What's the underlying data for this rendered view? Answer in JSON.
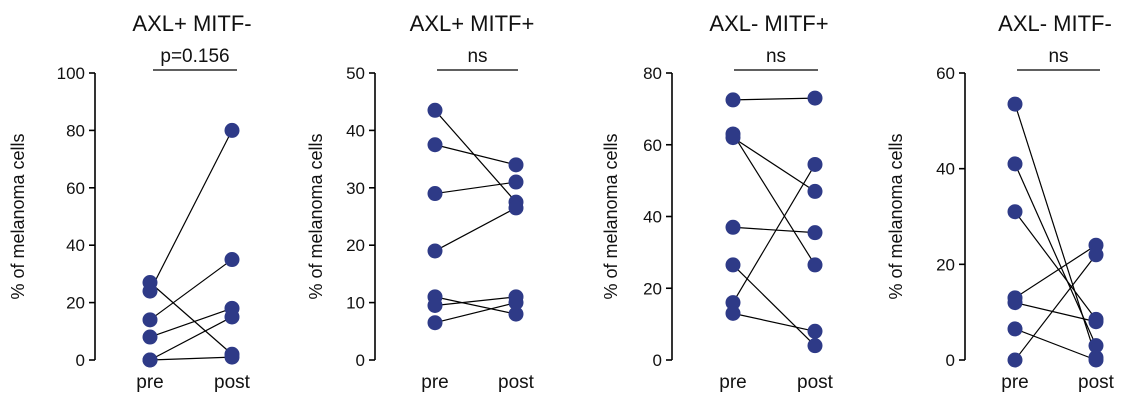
{
  "chart_data": [
    {
      "type": "scatter",
      "title": "AXL+ MITF-",
      "ylabel": "% of melanoma cells",
      "categories": [
        "pre",
        "post"
      ],
      "ylim": [
        0,
        100
      ],
      "yticks": [
        "0",
        "20",
        "40",
        "60",
        "80",
        "100"
      ],
      "annotation": "p=0.156",
      "pairs": [
        [
          27,
          2
        ],
        [
          24,
          80
        ],
        [
          14,
          35
        ],
        [
          8,
          18
        ],
        [
          0,
          15
        ],
        [
          0,
          1
        ]
      ]
    },
    {
      "type": "scatter",
      "title": "AXL+ MITF+",
      "ylabel": "% of melanoma cells",
      "categories": [
        "pre",
        "post"
      ],
      "ylim": [
        0,
        50
      ],
      "yticks": [
        "0",
        "10",
        "20",
        "30",
        "40",
        "50"
      ],
      "annotation": "ns",
      "pairs": [
        [
          43.5,
          27.5
        ],
        [
          37.5,
          34
        ],
        [
          29,
          31
        ],
        [
          19,
          26.5
        ],
        [
          11,
          8
        ],
        [
          9.5,
          11
        ],
        [
          6.5,
          10
        ]
      ]
    },
    {
      "type": "scatter",
      "title": "AXL- MITF+",
      "ylabel": "% of melanoma cells",
      "categories": [
        "pre",
        "post"
      ],
      "ylim": [
        0,
        80
      ],
      "yticks": [
        "0",
        "20",
        "40",
        "60",
        "80"
      ],
      "annotation": "ns",
      "pairs": [
        [
          72.5,
          73
        ],
        [
          63,
          26.5
        ],
        [
          62,
          47
        ],
        [
          37,
          35.5
        ],
        [
          26.5,
          4
        ],
        [
          16,
          54.5
        ],
        [
          13,
          8
        ]
      ]
    },
    {
      "type": "scatter",
      "title": "AXL- MITF-",
      "ylabel": "% of melanoma cells",
      "categories": [
        "pre",
        "post"
      ],
      "ylim": [
        0,
        60
      ],
      "yticks": [
        "0",
        "20",
        "40",
        "60"
      ],
      "annotation": "ns",
      "pairs": [
        [
          53.5,
          0.5
        ],
        [
          41,
          3
        ],
        [
          31,
          8.5
        ],
        [
          13,
          24
        ],
        [
          12,
          8
        ],
        [
          6.5,
          0
        ],
        [
          0,
          22
        ]
      ]
    }
  ],
  "colors": {
    "marker": "#2e3a87",
    "line": "#000000",
    "axis": "#000000"
  }
}
